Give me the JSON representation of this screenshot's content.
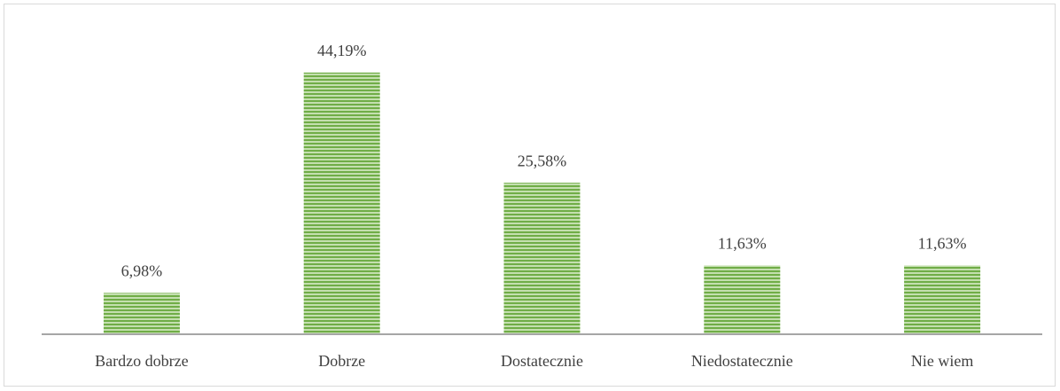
{
  "chart_data": {
    "type": "bar",
    "categories": [
      "Bardzo dobrze",
      "Dobrze",
      "Dostatecznie",
      "Niedostatecznie",
      "Nie wiem"
    ],
    "values": [
      6.98,
      44.19,
      25.58,
      11.63,
      11.63
    ],
    "value_labels": [
      "6,98%",
      "44,19%",
      "25,58%",
      "11,63%",
      "11,63%"
    ],
    "color": "#70ad47",
    "ylim": [
      0,
      50
    ]
  }
}
